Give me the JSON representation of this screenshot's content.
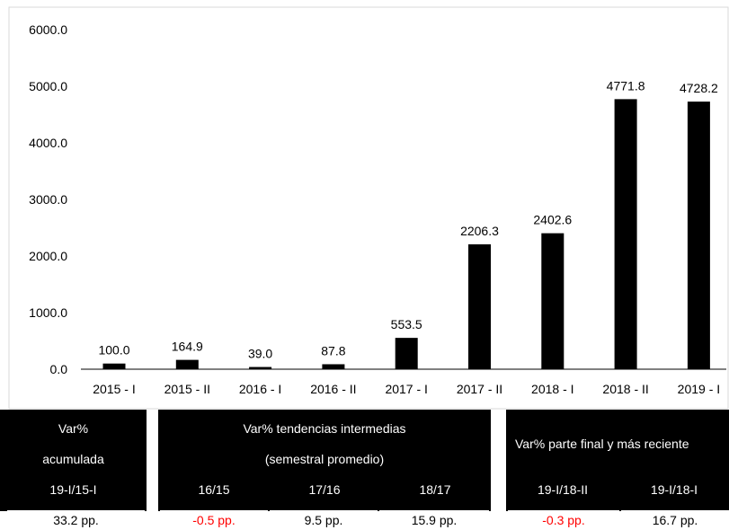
{
  "chart_data": {
    "type": "bar",
    "categories": [
      "2015 - I",
      "2015 - II",
      "2016 - I",
      "2016 - II",
      "2017 - I",
      "2017 - II",
      "2018 - I",
      "2018 - II",
      "2019 - I"
    ],
    "values": [
      100.0,
      164.9,
      39.0,
      87.8,
      553.5,
      2206.3,
      2402.6,
      4771.8,
      4728.2
    ],
    "value_labels": [
      "100.0",
      "164.9",
      "39.0",
      "87.8",
      "553.5",
      "2206.3",
      "2402.6",
      "4771.8",
      "4728.2"
    ],
    "yticks": [
      "0.0",
      "1000.0",
      "2000.0",
      "3000.0",
      "4000.0",
      "5000.0",
      "6000.0"
    ],
    "ylim": [
      0,
      6000
    ],
    "title": "",
    "xlabel": "",
    "ylabel": "",
    "bar_color": "#000000",
    "grid": false
  },
  "table": {
    "block1": {
      "header_line1": "Var%",
      "header_line2": "acumulada",
      "sub": "19-I/15-I",
      "value": "33.2 pp."
    },
    "block2": {
      "header_line1": "Var% tendencias intermedias",
      "header_line2": "(semestral promedio)",
      "subs": [
        "16/15",
        "17/16",
        "18/17"
      ],
      "values": [
        "-0.5 pp.",
        "9.5 pp.",
        "15.9 pp."
      ]
    },
    "block3": {
      "header_line1": "Var% parte final y más reciente",
      "subs": [
        "19-I/18-II",
        "19-I/18-I"
      ],
      "values": [
        "-0.3 pp.",
        "16.7 pp."
      ]
    },
    "negative_color": "#ff0000"
  }
}
